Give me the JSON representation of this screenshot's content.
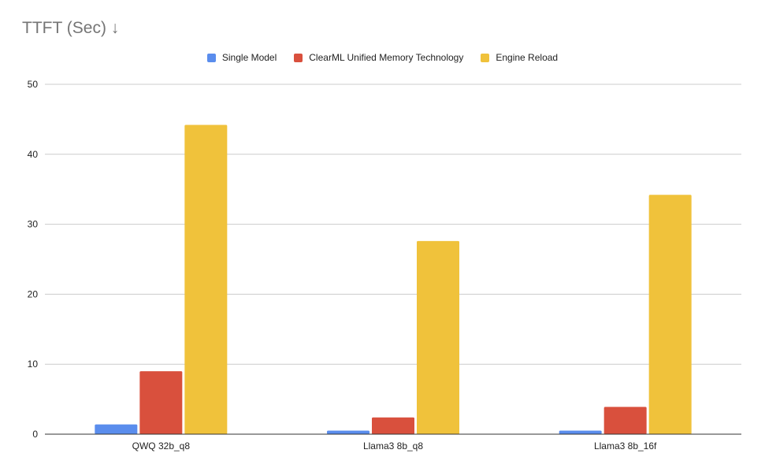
{
  "chart_data": {
    "type": "bar",
    "title": "TTFT (Sec) ↓",
    "xlabel": "",
    "ylabel": "",
    "categories": [
      "QWQ 32b_q8",
      "Llama3 8b_q8",
      "Llama3 8b_16f"
    ],
    "series": [
      {
        "name": "Single Model",
        "color": "#5a8ded",
        "values": [
          1.4,
          0.5,
          0.5
        ]
      },
      {
        "name": "ClearML Unified Memory Technology",
        "color": "#d9503d",
        "values": [
          9.0,
          2.4,
          3.9
        ]
      },
      {
        "name": "Engine Reload",
        "color": "#f0c23b",
        "values": [
          44.2,
          27.6,
          34.2
        ]
      }
    ],
    "ylim": [
      0,
      50
    ],
    "yticks": [
      0,
      10,
      20,
      30,
      40,
      50
    ],
    "grid": true,
    "legend_position": "top"
  }
}
